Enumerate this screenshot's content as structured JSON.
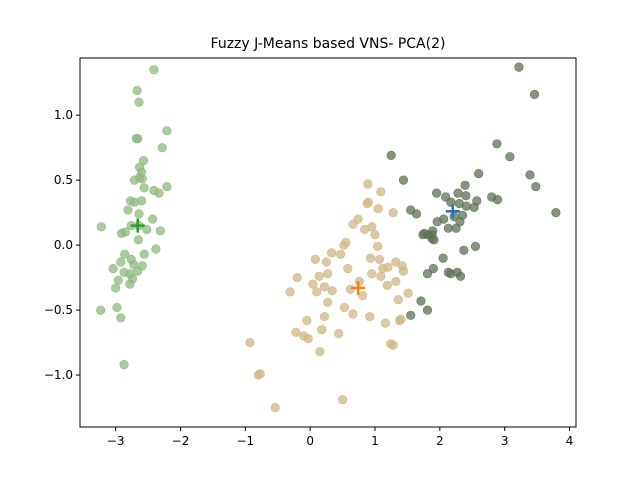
{
  "chart_data": {
    "type": "scatter",
    "title": "Fuzzy J-Means based VNS- PCA(2)",
    "xlabel": "",
    "ylabel": "",
    "xlim": [
      -3.55,
      4.1
    ],
    "ylim": [
      -1.4,
      1.44
    ],
    "x_ticks": [
      -3,
      -2,
      -1,
      0,
      1,
      2,
      3,
      4
    ],
    "y_ticks": [
      -1.0,
      -0.5,
      0.0,
      0.5,
      1.0
    ],
    "x_tick_labels": [
      "−3",
      "−2",
      "−1",
      "0",
      "1",
      "2",
      "3",
      "4"
    ],
    "y_tick_labels": [
      "−1.0",
      "−0.5",
      "0.0",
      "0.5",
      "1.0"
    ],
    "grid": false,
    "legend": "none",
    "series": [
      {
        "color": "#8fb87f",
        "points": [
          [
            -2.41,
            1.35
          ],
          [
            -2.67,
            1.19
          ],
          [
            -2.64,
            1.1
          ],
          [
            -2.66,
            0.82
          ],
          [
            -2.68,
            0.82
          ],
          [
            -2.21,
            0.88
          ],
          [
            -2.63,
            0.6
          ],
          [
            -2.28,
            0.75
          ],
          [
            -2.57,
            0.65
          ],
          [
            -2.63,
            0.52
          ],
          [
            -2.6,
            0.56
          ],
          [
            -2.59,
            0.51
          ],
          [
            -2.71,
            0.5
          ],
          [
            -2.56,
            0.44
          ],
          [
            -2.41,
            0.42
          ],
          [
            -2.33,
            0.4
          ],
          [
            -2.21,
            0.45
          ],
          [
            -2.77,
            0.34
          ],
          [
            -2.71,
            0.33
          ],
          [
            -2.6,
            0.34
          ],
          [
            -2.81,
            0.27
          ],
          [
            -2.64,
            0.24
          ],
          [
            -2.43,
            0.2
          ],
          [
            -2.76,
            0.15
          ],
          [
            -2.64,
            0.15
          ],
          [
            -2.52,
            0.12
          ],
          [
            -2.85,
            0.1
          ],
          [
            -2.31,
            0.11
          ],
          [
            -3.22,
            0.14
          ],
          [
            -2.91,
            0.09
          ],
          [
            -2.65,
            0.04
          ],
          [
            -2.38,
            -0.03
          ],
          [
            -2.56,
            -0.07
          ],
          [
            -2.86,
            -0.07
          ],
          [
            -2.76,
            -0.11
          ],
          [
            -2.92,
            -0.13
          ],
          [
            -2.72,
            -0.15
          ],
          [
            -2.59,
            -0.16
          ],
          [
            -3.04,
            -0.18
          ],
          [
            -2.66,
            -0.2
          ],
          [
            -2.87,
            -0.21
          ],
          [
            -2.78,
            -0.22
          ],
          [
            -2.74,
            -0.26
          ],
          [
            -2.96,
            -0.27
          ],
          [
            -2.78,
            -0.3
          ],
          [
            -3.0,
            -0.33
          ],
          [
            -3.23,
            -0.5
          ],
          [
            -2.98,
            -0.48
          ],
          [
            -2.92,
            -0.56
          ],
          [
            -2.87,
            -0.92
          ]
        ],
        "centroid": [
          -2.66,
          0.15
        ]
      },
      {
        "color": "#cfb785",
        "points": [
          [
            0.89,
            0.47
          ],
          [
            1.09,
            0.41
          ],
          [
            0.9,
            0.33
          ],
          [
            0.88,
            0.32
          ],
          [
            1.05,
            0.28
          ],
          [
            0.74,
            0.2
          ],
          [
            1.28,
            0.25
          ],
          [
            0.66,
            0.16
          ],
          [
            0.95,
            0.14
          ],
          [
            0.84,
            0.12
          ],
          [
            1.0,
            0.08
          ],
          [
            0.55,
            0.02
          ],
          [
            0.52,
            0.0
          ],
          [
            1.04,
            -0.01
          ],
          [
            0.33,
            -0.06
          ],
          [
            0.47,
            -0.07
          ],
          [
            0.08,
            -0.11
          ],
          [
            0.93,
            -0.1
          ],
          [
            1.07,
            -0.11
          ],
          [
            1.32,
            -0.13
          ],
          [
            0.25,
            -0.13
          ],
          [
            1.42,
            -0.16
          ],
          [
            1.12,
            -0.18
          ],
          [
            0.58,
            -0.18
          ],
          [
            1.2,
            -0.17
          ],
          [
            0.27,
            -0.22
          ],
          [
            0.95,
            -0.22
          ],
          [
            1.09,
            -0.24
          ],
          [
            1.44,
            -0.2
          ],
          [
            0.14,
            -0.24
          ],
          [
            -0.2,
            -0.25
          ],
          [
            0.76,
            -0.28
          ],
          [
            1.32,
            -0.28
          ],
          [
            0.04,
            -0.3
          ],
          [
            0.22,
            -0.32
          ],
          [
            1.19,
            -0.31
          ],
          [
            0.62,
            -0.34
          ],
          [
            0.1,
            -0.36
          ],
          [
            -0.31,
            -0.36
          ],
          [
            0.34,
            -0.35
          ],
          [
            1.51,
            -0.37
          ],
          [
            0.81,
            -0.39
          ],
          [
            1.36,
            -0.42
          ],
          [
            0.27,
            -0.44
          ],
          [
            0.53,
            -0.48
          ],
          [
            0.66,
            -0.53
          ],
          [
            0.92,
            -0.55
          ],
          [
            1.4,
            -0.57
          ],
          [
            1.38,
            -0.58
          ],
          [
            0.22,
            -0.55
          ],
          [
            1.16,
            -0.6
          ],
          [
            -0.05,
            -0.58
          ],
          [
            0.18,
            -0.65
          ],
          [
            0.44,
            -0.68
          ],
          [
            -0.22,
            -0.67
          ],
          [
            -0.1,
            -0.7
          ],
          [
            -0.03,
            -0.72
          ],
          [
            1.24,
            -0.76
          ],
          [
            1.28,
            -0.77
          ],
          [
            -0.93,
            -0.75
          ],
          [
            0.15,
            -0.82
          ],
          [
            -0.77,
            -0.99
          ],
          [
            -0.8,
            -1.0
          ],
          [
            0.5,
            -1.19
          ],
          [
            -0.54,
            -1.25
          ]
        ],
        "centroid": [
          0.74,
          -0.33
        ]
      },
      {
        "color": "#5e7156",
        "points": [
          [
            3.22,
            1.37
          ],
          [
            3.46,
            1.16
          ],
          [
            2.88,
            0.78
          ],
          [
            3.08,
            0.68
          ],
          [
            1.25,
            0.69
          ],
          [
            2.6,
            0.55
          ],
          [
            3.39,
            0.54
          ],
          [
            1.44,
            0.5
          ],
          [
            2.39,
            0.46
          ],
          [
            3.48,
            0.45
          ],
          [
            1.95,
            0.4
          ],
          [
            2.28,
            0.4
          ],
          [
            2.09,
            0.37
          ],
          [
            2.4,
            0.38
          ],
          [
            2.8,
            0.37
          ],
          [
            2.3,
            0.32
          ],
          [
            2.89,
            0.35
          ],
          [
            2.17,
            0.33
          ],
          [
            2.57,
            0.34
          ],
          [
            2.53,
            0.29
          ],
          [
            2.41,
            0.3
          ],
          [
            3.79,
            0.25
          ],
          [
            1.55,
            0.27
          ],
          [
            1.64,
            0.24
          ],
          [
            2.35,
            0.23
          ],
          [
            2.22,
            0.22
          ],
          [
            2.06,
            0.2
          ],
          [
            1.96,
            0.18
          ],
          [
            2.31,
            0.18
          ],
          [
            2.13,
            0.13
          ],
          [
            1.89,
            0.11
          ],
          [
            1.88,
            0.05
          ],
          [
            1.88,
            0.08
          ],
          [
            1.91,
            0.04
          ],
          [
            1.74,
            0.08
          ],
          [
            1.82,
            0.08
          ],
          [
            1.76,
            0.09
          ],
          [
            2.25,
            0.13
          ],
          [
            2.55,
            -0.01
          ],
          [
            2.37,
            -0.04
          ],
          [
            2.05,
            -0.1
          ],
          [
            2.27,
            -0.21
          ],
          [
            2.13,
            -0.21
          ],
          [
            2.17,
            -0.22
          ],
          [
            1.9,
            -0.18
          ],
          [
            1.81,
            -0.22
          ],
          [
            2.32,
            -0.24
          ],
          [
            1.71,
            -0.43
          ],
          [
            1.55,
            -0.54
          ],
          [
            1.81,
            -0.5
          ]
        ],
        "centroid": [
          2.2,
          0.26
        ]
      }
    ],
    "centroid_colors": [
      "#2ca02c",
      "#ff7f0e",
      "#1f77b4"
    ]
  }
}
